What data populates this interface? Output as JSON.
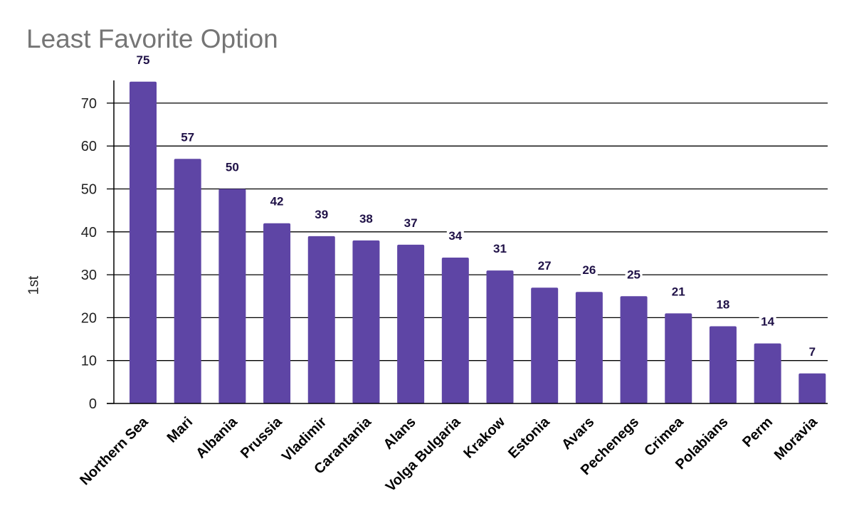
{
  "chart_data": {
    "type": "bar",
    "title": "Least Favorite Option",
    "xlabel": "",
    "ylabel": "1st",
    "categories": [
      "Northern Sea",
      "Mari",
      "Albania",
      "Prussia",
      "Vladimir",
      "Carantania",
      "Alans",
      "Volga Bulgaria",
      "Krakow",
      "Estonia",
      "Avars",
      "Pechenegs",
      "Crimea",
      "Polabians",
      "Perm",
      "Moravia"
    ],
    "series": [
      {
        "values": [
          75,
          57,
          50,
          42,
          39,
          38,
          37,
          34,
          31,
          27,
          26,
          25,
          21,
          18,
          14,
          7
        ]
      }
    ],
    "ylim": [
      0,
      75
    ],
    "yticks": [
      0,
      10,
      20,
      30,
      40,
      50,
      60,
      70
    ],
    "grid": true,
    "data_labels": true,
    "bar_color": "#5e45a5",
    "label_color": "#1f1147",
    "legend": "none"
  }
}
